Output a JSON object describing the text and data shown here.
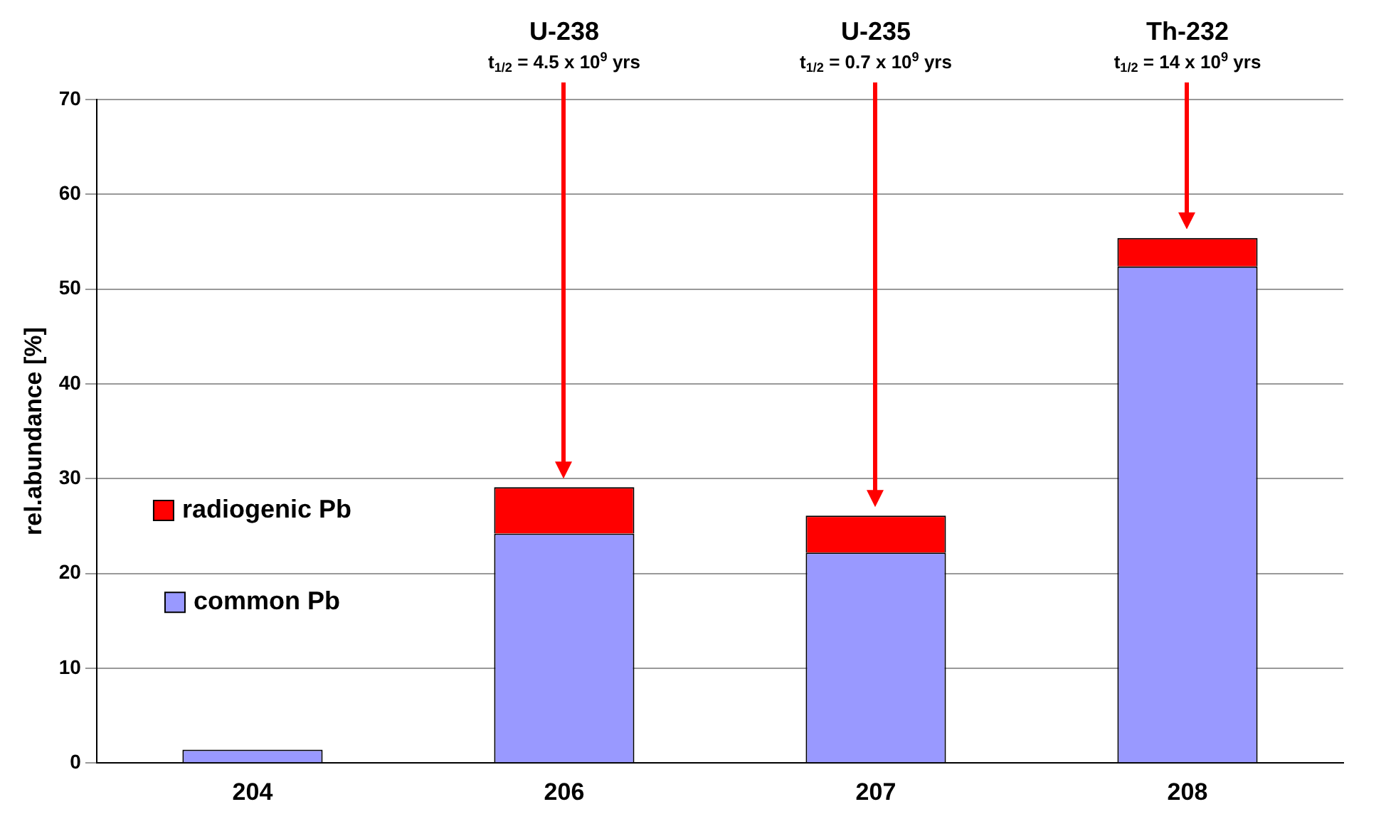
{
  "chart_data": {
    "type": "bar",
    "stacked": true,
    "categories": [
      "204",
      "206",
      "207",
      "208"
    ],
    "series": [
      {
        "name": "common Pb",
        "color": "#9999ff",
        "values": [
          1.4,
          24.2,
          22.2,
          52.4
        ]
      },
      {
        "name": "radiogenic Pb",
        "color": "#ff0000",
        "values": [
          0,
          4.9,
          3.9,
          3
        ]
      }
    ],
    "ylabel": "rel.abundance [%]",
    "ylim": [
      0,
      70
    ],
    "yticks": [
      0,
      10,
      20,
      30,
      40,
      50,
      60,
      70
    ],
    "grid": "y",
    "legend": "left",
    "annotations": [
      "U-238",
      "t$_{1/2}$ = 4.5 x 10$^{9}$ yrs",
      "U-235",
      "t$_{1/2}$ = 0.7 x 10$^{9}$ yrs",
      "Th-232",
      "t$_{1/2}$ = 14 x 10$^{9}$ yrs"
    ]
  }
}
